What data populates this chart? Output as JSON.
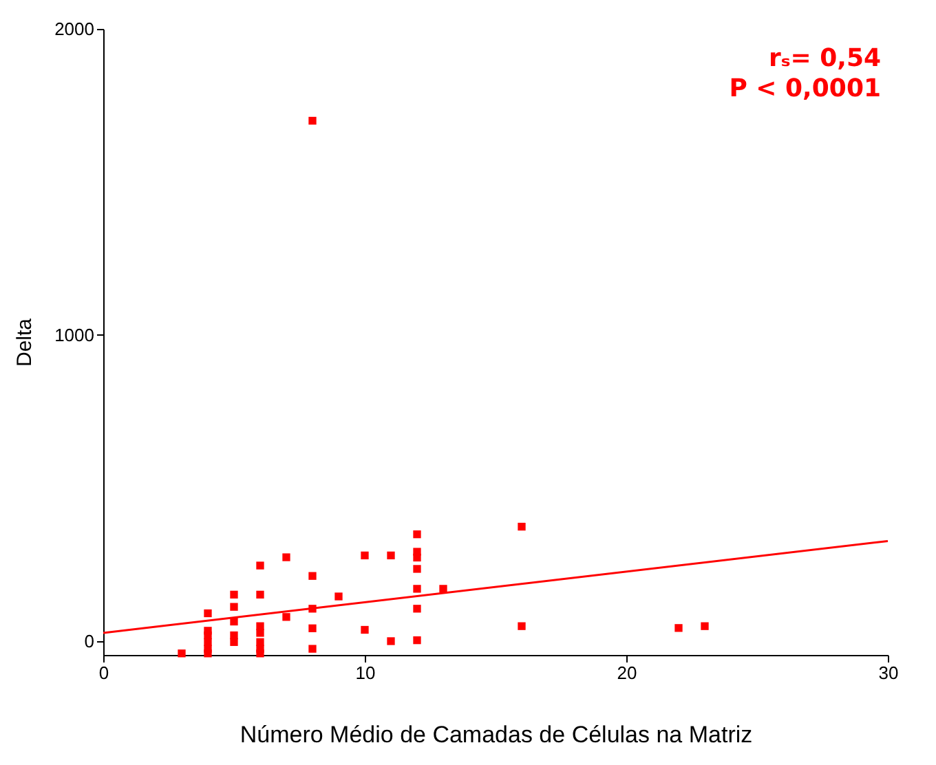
{
  "chart_data": {
    "type": "scatter",
    "xlabel": "Número Médio de Camadas de Células na Matriz",
    "ylabel": "Delta",
    "xlim": [
      0,
      30
    ],
    "ylim": [
      -45,
      2000
    ],
    "xticks": [
      0,
      10,
      20,
      30
    ],
    "yticks": [
      0,
      1000,
      2000
    ],
    "grid": false,
    "annotations": [
      "rₛ= 0,54",
      "P < 0,0001"
    ],
    "series": [
      {
        "marker": "square",
        "color": "#ff0000",
        "x": [
          3,
          4,
          4,
          4,
          4,
          4,
          4,
          5,
          5,
          5,
          5,
          5,
          6,
          6,
          6,
          6,
          6,
          6,
          6,
          7,
          7,
          8,
          8,
          8,
          8,
          8,
          9,
          10,
          10,
          11,
          11,
          12,
          12,
          12,
          12,
          12,
          12,
          12,
          13,
          16,
          16,
          22,
          23
        ],
        "values": [
          -40,
          91,
          34,
          19,
          -3,
          -25,
          -40,
          152,
          112,
          64,
          19,
          -3,
          247,
          152,
          49,
          27,
          -3,
          -25,
          -40,
          274,
          79,
          1700,
          213,
          106,
          42,
          -25,
          146,
          280,
          37,
          280,
          0,
          349,
          292,
          273,
          236,
          171,
          106,
          3,
          171,
          374,
          49,
          43,
          49
        ]
      },
      {
        "type": "line",
        "color": "#ff0000",
        "x": [
          0,
          30
        ],
        "values": [
          27,
          327
        ]
      }
    ]
  }
}
